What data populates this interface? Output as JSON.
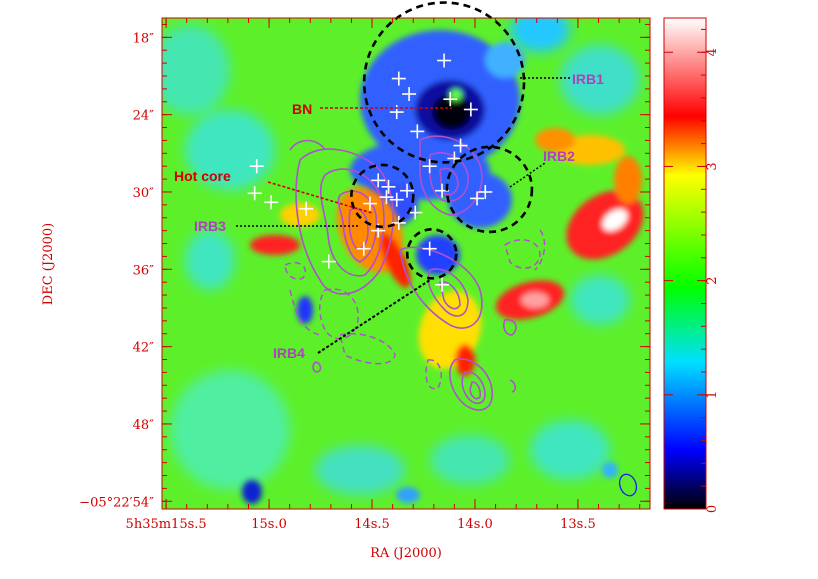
{
  "chart_data": {
    "type": "heatmap",
    "xlabel": "RA (J2000)",
    "ylabel": "DEC (J2000)",
    "colorbar": {
      "range": [
        0,
        4.3
      ],
      "ticks": [
        0,
        1,
        2,
        3,
        4
      ],
      "tick_labels": [
        "0",
        "1",
        "2",
        "3",
        "4"
      ],
      "colormap": [
        "#000000",
        "#0000ff",
        "#00ffff",
        "#00ff00",
        "#ffff00",
        "#ff0000",
        "#ffffff"
      ]
    },
    "x_ticks": [
      {
        "label": "5h35m15s.5",
        "value_s": 15.5
      },
      {
        "label": "15s.0",
        "value_s": 15.0
      },
      {
        "label": "14s.5",
        "value_s": 14.5
      },
      {
        "label": "14s.0",
        "value_s": 14.0
      },
      {
        "label": "13s.5",
        "value_s": 13.5
      }
    ],
    "y_ticks": [
      {
        "label": "18″",
        "value_arcsec": 18
      },
      {
        "label": "24″",
        "value_arcsec": 24
      },
      {
        "label": "30″",
        "value_arcsec": 30
      },
      {
        "label": "36″",
        "value_arcsec": 36
      },
      {
        "label": "42″",
        "value_arcsec": 42
      },
      {
        "label": "48″",
        "value_arcsec": 48
      },
      {
        "label": "−05°22′54″",
        "value_arcsec": 54
      }
    ],
    "xlim_s": [
      15.52,
      13.15
    ],
    "ylim_arcsec": [
      54.6,
      16.5
    ],
    "annotations": [
      {
        "label": "IRB1",
        "color": "#b040c0",
        "ra_s": 14.15,
        "dec_arcsec": 21.5,
        "radius_arcsec": 6.2
      },
      {
        "label": "IRB2",
        "color": "#b040c0",
        "ra_s": 13.93,
        "dec_arcsec": 29.8,
        "radius_arcsec": 3.3
      },
      {
        "label": "IRB3",
        "color": "#b040c0",
        "ra_s": 14.45,
        "dec_arcsec": 30.3,
        "radius_arcsec": 2.4
      },
      {
        "label": "IRB4",
        "color": "#b040c0",
        "ra_s": 14.21,
        "dec_arcsec": 34.8,
        "radius_arcsec": 1.9
      },
      {
        "label": "BN",
        "color": "#d00000",
        "ra_s": 14.12,
        "dec_arcsec": 22.7
      },
      {
        "label": "Hot core",
        "color": "#d00000",
        "ra_s": 14.55,
        "dec_arcsec": 31.0
      }
    ],
    "sources_plus": [
      [
        14.15,
        19.8
      ],
      [
        14.37,
        21.2
      ],
      [
        14.32,
        22.4
      ],
      [
        14.38,
        23.8
      ],
      [
        14.12,
        22.8
      ],
      [
        14.02,
        23.6
      ],
      [
        14.28,
        25.3
      ],
      [
        14.07,
        26.4
      ],
      [
        14.1,
        27.4
      ],
      [
        14.22,
        28.0
      ],
      [
        14.47,
        29.1
      ],
      [
        14.42,
        29.6
      ],
      [
        14.16,
        29.9
      ],
      [
        14.33,
        29.9
      ],
      [
        14.43,
        30.4
      ],
      [
        14.38,
        30.6
      ],
      [
        13.99,
        30.5
      ],
      [
        14.51,
        30.9
      ],
      [
        14.29,
        31.6
      ],
      [
        14.82,
        31.3
      ],
      [
        15.06,
        28.0
      ],
      [
        15.07,
        30.1
      ],
      [
        14.37,
        32.4
      ],
      [
        14.54,
        34.4
      ],
      [
        14.22,
        34.4
      ],
      [
        14.71,
        35.4
      ],
      [
        14.16,
        37.2
      ],
      [
        13.95,
        30.0
      ],
      [
        14.47,
        33.0
      ],
      [
        14.99,
        30.8
      ]
    ]
  }
}
